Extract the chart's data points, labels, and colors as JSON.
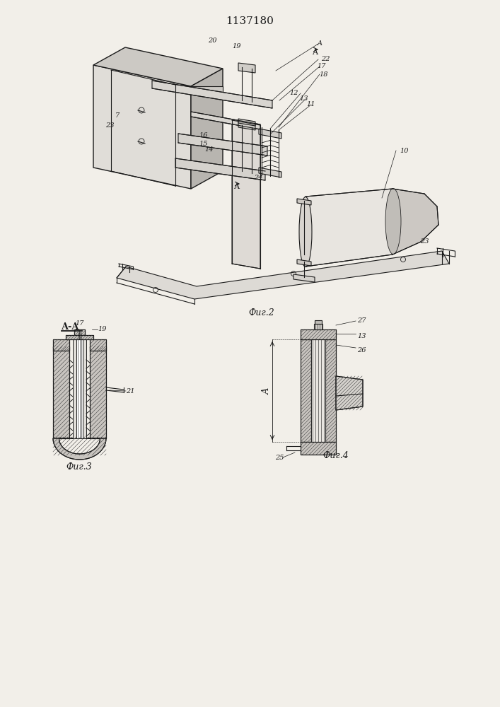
{
  "title": "1137180",
  "bg_color": "#f2efe9",
  "fig2_caption": "Фиг.2",
  "fig3_caption": "Фиг.3",
  "fig4_caption": "Фиг.4",
  "line_color": "#1a1a1a",
  "hatch_color": "#444444",
  "font_size_title": 11,
  "font_size_caption": 9,
  "font_size_label": 7
}
